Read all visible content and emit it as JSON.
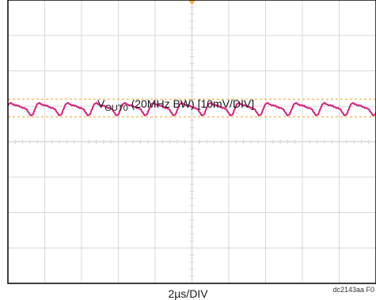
{
  "chart_data": {
    "type": "line",
    "title": "",
    "trace_label": {
      "prefix": "V",
      "subscript": "OUT0",
      "suffix": " (20MHz BW) [10mV/DIV]"
    },
    "xlabel": "2µs/DIV",
    "ylabel": "",
    "grid": true,
    "divisions": {
      "x": 10,
      "y": 8
    },
    "series": [
      {
        "name": "",
        "unit": "mV",
        "x_unit": "µs",
        "x_range": [
          0,
          20
        ],
        "color": "#d6207e",
        "offset_div": 0.95,
        "ripple_period_us": 1.55,
        "ripple_pk_pk_mV": 4
      }
    ],
    "reference_lines_div": [
      0.7,
      1.2
    ],
    "reference_color": "#f4b040"
  },
  "figure_code": "dc2143aa F0",
  "colors": {
    "grid": "#d8d8d8",
    "axis": "#000000",
    "trace": "#d6207e",
    "ref": "#f4b040"
  }
}
